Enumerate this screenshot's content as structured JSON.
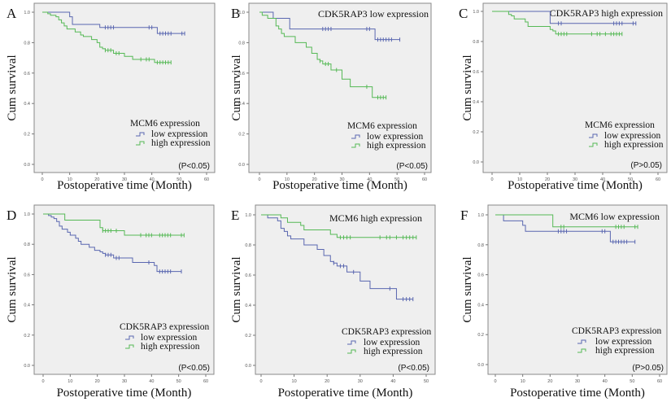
{
  "colors": {
    "low": "#5a67b0",
    "high": "#56b956",
    "plot_bg": "#efefef",
    "frame": "#8a8a8a"
  },
  "chart_data": [
    {
      "type": "line",
      "subtype": "kaplan-meier",
      "panel_label": "A",
      "subtitle": "",
      "xlabel": "Postoperative time (Month)",
      "ylabel": "Cum survival",
      "xlim": [
        0,
        60
      ],
      "ylim": [
        0,
        1
      ],
      "xticks": [
        "0",
        "10",
        "20",
        "30",
        "40",
        "50",
        "60"
      ],
      "yticks": [
        "0.0",
        "0.2",
        "0.4",
        "0.6",
        "0.8",
        "1.0"
      ],
      "legend_title": "MCM6 expression",
      "p_value": "(P<0.05)",
      "grid": false,
      "series": [
        {
          "name": "low expression",
          "color_key": "low",
          "steps": [
            [
              0,
              1
            ],
            [
              10,
              0.97
            ],
            [
              11,
              0.92
            ],
            [
              21,
              0.9
            ],
            [
              42,
              0.86
            ]
          ],
          "end": 52,
          "censored": [
            23,
            24,
            25,
            26,
            39,
            40,
            43,
            44,
            45,
            46,
            47,
            51,
            52
          ]
        },
        {
          "name": "high expression",
          "color_key": "high",
          "steps": [
            [
              0,
              1
            ],
            [
              2,
              0.99
            ],
            [
              3,
              0.98
            ],
            [
              5,
              0.97
            ],
            [
              6,
              0.95
            ],
            [
              7,
              0.93
            ],
            [
              8,
              0.91
            ],
            [
              9,
              0.89
            ],
            [
              12,
              0.87
            ],
            [
              14,
              0.85
            ],
            [
              15,
              0.84
            ],
            [
              18,
              0.82
            ],
            [
              20,
              0.8
            ],
            [
              21,
              0.77
            ],
            [
              22,
              0.76
            ],
            [
              23,
              0.75
            ],
            [
              26,
              0.73
            ],
            [
              30,
              0.71
            ],
            [
              33,
              0.69
            ],
            [
              41,
              0.67
            ]
          ],
          "end": 47,
          "censored": [
            23,
            24,
            25,
            27,
            28,
            36,
            38,
            39,
            42,
            43,
            44,
            45,
            46,
            47
          ]
        }
      ]
    },
    {
      "type": "line",
      "subtype": "kaplan-meier",
      "panel_label": "B",
      "subtitle": "CDK5RAP3 low expression",
      "xlabel": "Postoperative time (Month)",
      "ylabel": "Cum survival",
      "xlim": [
        0,
        60
      ],
      "ylim": [
        0,
        1
      ],
      "xticks": [
        "0",
        "10",
        "20",
        "30",
        "40",
        "50",
        "60"
      ],
      "yticks": [
        "0.0",
        "0.2",
        "0.4",
        "0.6",
        "0.8",
        "1.0"
      ],
      "legend_title": "MCM6 expression",
      "p_value": "(P<0.05)",
      "grid": false,
      "series": [
        {
          "name": "low expression",
          "color_key": "low",
          "steps": [
            [
              0,
              1
            ],
            [
              5,
              0.96
            ],
            [
              11,
              0.89
            ],
            [
              42,
              0.82
            ]
          ],
          "end": 51,
          "censored": [
            23,
            24,
            25,
            26,
            39,
            40,
            43,
            44,
            45,
            46,
            47,
            48,
            51
          ]
        },
        {
          "name": "high expression",
          "color_key": "high",
          "steps": [
            [
              0,
              1
            ],
            [
              1,
              0.98
            ],
            [
              3,
              0.96
            ],
            [
              6,
              0.91
            ],
            [
              7,
              0.89
            ],
            [
              8,
              0.86
            ],
            [
              9,
              0.84
            ],
            [
              13,
              0.8
            ],
            [
              17,
              0.77
            ],
            [
              19,
              0.73
            ],
            [
              21,
              0.69
            ],
            [
              22,
              0.68
            ],
            [
              23,
              0.66
            ],
            [
              26,
              0.62
            ],
            [
              30,
              0.56
            ],
            [
              33,
              0.51
            ],
            [
              41,
              0.44
            ]
          ],
          "end": 46,
          "censored": [
            22,
            24,
            25,
            28,
            39,
            43,
            44,
            45,
            46
          ]
        }
      ]
    },
    {
      "type": "line",
      "subtype": "kaplan-meier",
      "panel_label": "C",
      "subtitle": "CDK5RAP3 high expression",
      "xlabel": "Postoperative time (Month)",
      "ylabel": "Cum survival",
      "xlim": [
        0,
        60
      ],
      "ylim": [
        0,
        1
      ],
      "xticks": [
        "0",
        "10",
        "20",
        "30",
        "40",
        "50",
        "60"
      ],
      "yticks": [
        "0.0",
        "0.2",
        "0.4",
        "0.6",
        "0.8",
        "1.0"
      ],
      "legend_title": "MCM6 expression",
      "p_value": "(P>0.05)",
      "grid": false,
      "series": [
        {
          "name": "low expression",
          "color_key": "low",
          "steps": [
            [
              0,
              1
            ],
            [
              21,
              0.92
            ]
          ],
          "end": 52,
          "censored": [
            24,
            25,
            44,
            45,
            46,
            47,
            51,
            52
          ]
        },
        {
          "name": "high expression",
          "color_key": "high",
          "steps": [
            [
              0,
              1
            ],
            [
              6,
              0.98
            ],
            [
              7,
              0.97
            ],
            [
              8,
              0.95
            ],
            [
              12,
              0.93
            ],
            [
              13,
              0.9
            ],
            [
              21,
              0.88
            ],
            [
              22,
              0.87
            ],
            [
              23,
              0.85
            ]
          ],
          "end": 47,
          "censored": [
            24,
            25,
            26,
            27,
            36,
            38,
            39,
            41,
            43,
            44,
            45,
            46,
            47
          ]
        }
      ]
    },
    {
      "type": "line",
      "subtype": "kaplan-meier",
      "panel_label": "D",
      "subtitle": "",
      "xlabel": "Postoperative time (Month)",
      "ylabel": "Cum survival",
      "xlim": [
        0,
        60
      ],
      "ylim": [
        0,
        1
      ],
      "xticks": [
        "0",
        "10",
        "20",
        "30",
        "40",
        "50",
        "60"
      ],
      "yticks": [
        "0.0",
        "0.2",
        "0.4",
        "0.6",
        "0.8",
        "1.0"
      ],
      "legend_title": "CDK5RAP3 expression",
      "p_value": "(P<0.05)",
      "grid": false,
      "series": [
        {
          "name": "low expression",
          "color_key": "low",
          "steps": [
            [
              0,
              1
            ],
            [
              2,
              0.99
            ],
            [
              3,
              0.98
            ],
            [
              4,
              0.97
            ],
            [
              5,
              0.95
            ],
            [
              6,
              0.92
            ],
            [
              7,
              0.9
            ],
            [
              9,
              0.88
            ],
            [
              10,
              0.86
            ],
            [
              12,
              0.84
            ],
            [
              13,
              0.82
            ],
            [
              14,
              0.8
            ],
            [
              17,
              0.78
            ],
            [
              19,
              0.76
            ],
            [
              21,
              0.75
            ],
            [
              22,
              0.74
            ],
            [
              23,
              0.73
            ],
            [
              26,
              0.71
            ],
            [
              33,
              0.68
            ],
            [
              41,
              0.66
            ],
            [
              42,
              0.62
            ]
          ],
          "end": 51,
          "censored": [
            23,
            24,
            25,
            27,
            28,
            39,
            43,
            44,
            45,
            46,
            47,
            51
          ]
        },
        {
          "name": "high expression",
          "color_key": "high",
          "steps": [
            [
              0,
              1
            ],
            [
              8,
              0.96
            ],
            [
              21,
              0.91
            ],
            [
              22,
              0.89
            ],
            [
              30,
              0.86
            ]
          ],
          "end": 52,
          "censored": [
            22,
            23,
            24,
            25,
            27,
            36,
            38,
            39,
            40,
            43,
            44,
            45,
            46,
            47,
            51,
            52
          ]
        }
      ]
    },
    {
      "type": "line",
      "subtype": "kaplan-meier",
      "panel_label": "E",
      "subtitle": "MCM6 high expression",
      "xlabel": "Postoperative time (Month)",
      "ylabel": "Cum survival",
      "xlim": [
        0,
        50
      ],
      "ylim": [
        0,
        1
      ],
      "xticks": [
        "0",
        "10",
        "20",
        "30",
        "40",
        "50"
      ],
      "yticks": [
        "0.0",
        "0.2",
        "0.4",
        "0.6",
        "0.8",
        "1.0"
      ],
      "legend_title": "CDK5RAP3 expression",
      "p_value": "(P<0.05)",
      "grid": false,
      "series": [
        {
          "name": "low expression",
          "color_key": "low",
          "steps": [
            [
              0,
              1
            ],
            [
              2,
              0.98
            ],
            [
              5,
              0.96
            ],
            [
              6,
              0.91
            ],
            [
              7,
              0.89
            ],
            [
              8,
              0.86
            ],
            [
              9,
              0.84
            ],
            [
              13,
              0.8
            ],
            [
              17,
              0.77
            ],
            [
              19,
              0.73
            ],
            [
              21,
              0.69
            ],
            [
              22,
              0.68
            ],
            [
              23,
              0.66
            ],
            [
              26,
              0.62
            ],
            [
              30,
              0.56
            ],
            [
              33,
              0.51
            ],
            [
              41,
              0.44
            ]
          ],
          "end": 46,
          "censored": [
            22,
            24,
            25,
            28,
            39,
            43,
            44,
            45,
            46
          ]
        },
        {
          "name": "high expression",
          "color_key": "high",
          "steps": [
            [
              0,
              1
            ],
            [
              6,
              0.98
            ],
            [
              8,
              0.95
            ],
            [
              12,
              0.93
            ],
            [
              13,
              0.9
            ],
            [
              21,
              0.87
            ],
            [
              23,
              0.85
            ]
          ],
          "end": 47,
          "censored": [
            24,
            25,
            26,
            27,
            36,
            38,
            39,
            41,
            43,
            44,
            45,
            46,
            47
          ]
        }
      ]
    },
    {
      "type": "line",
      "subtype": "kaplan-meier",
      "panel_label": "F",
      "subtitle": "MCM6 low expression",
      "xlabel": "Postoperative time (Month)",
      "ylabel": "Cum survival",
      "xlim": [
        0,
        60
      ],
      "ylim": [
        0,
        1
      ],
      "xticks": [
        "0",
        "10",
        "20",
        "30",
        "40",
        "50",
        "60"
      ],
      "yticks": [
        "0.0",
        "0.2",
        "0.4",
        "0.6",
        "0.8",
        "1.0"
      ],
      "legend_title": "CDK5RAP3 expression",
      "p_value": "(P>0.05)",
      "grid": false,
      "series": [
        {
          "name": "low expression",
          "color_key": "low",
          "steps": [
            [
              0,
              1
            ],
            [
              3,
              0.96
            ],
            [
              10,
              0.93
            ],
            [
              11,
              0.89
            ],
            [
              42,
              0.82
            ]
          ],
          "end": 51,
          "censored": [
            23,
            24,
            25,
            26,
            39,
            40,
            43,
            44,
            45,
            46,
            47,
            48,
            51
          ]
        },
        {
          "name": "high expression",
          "color_key": "high",
          "steps": [
            [
              0,
              1
            ],
            [
              21,
              0.92
            ]
          ],
          "end": 52,
          "censored": [
            24,
            25,
            44,
            45,
            46,
            47,
            51,
            52
          ]
        }
      ]
    }
  ]
}
